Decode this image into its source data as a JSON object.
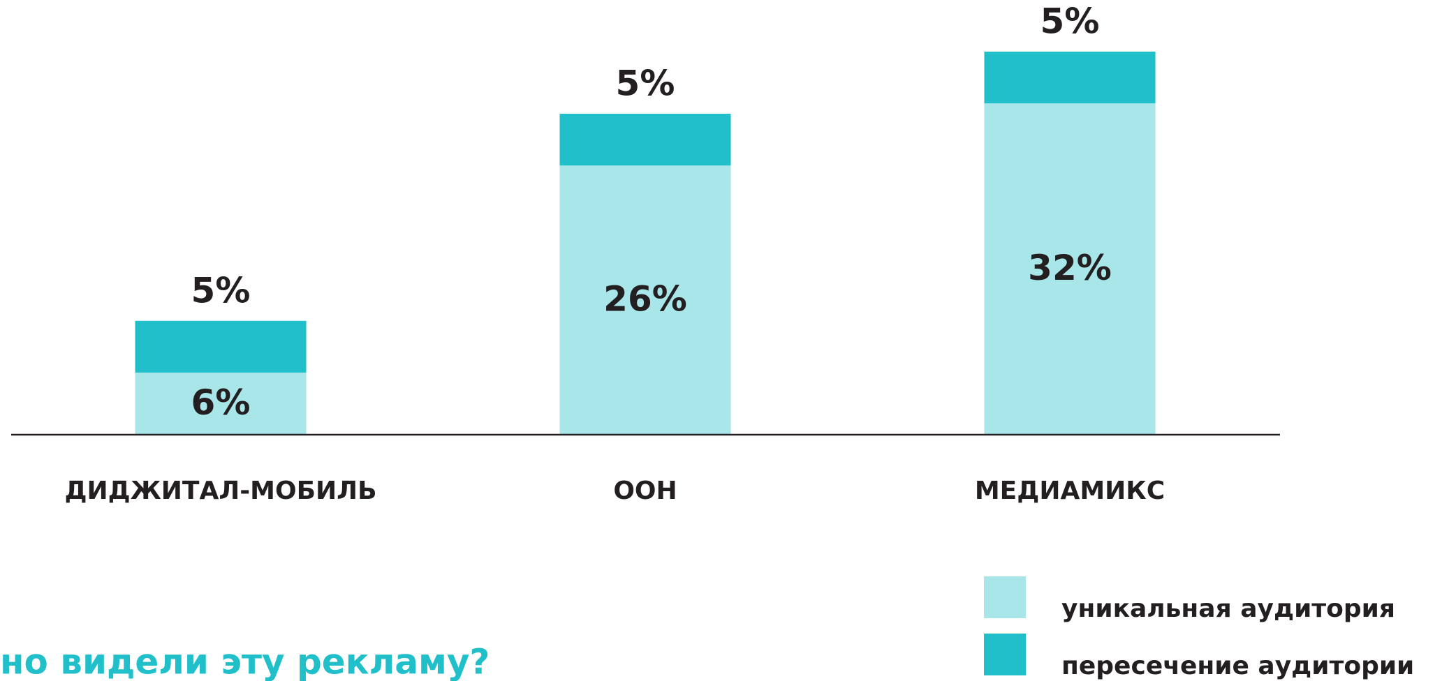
{
  "chart_data": {
    "type": "stacked_bar",
    "title": "но видели эту рекламу?",
    "categories": [
      "ДИДЖИТАЛ-МОБИЛЬ",
      "OOH",
      "МЕДИАМИКС"
    ],
    "series": [
      {
        "name": "уникальная аудитория",
        "color": "#a8e6e9",
        "values": [
          6,
          26,
          32
        ],
        "value_labels": [
          "6%",
          "26%",
          "32%"
        ]
      },
      {
        "name": "пересечение аудитории",
        "color": "#21bfc9",
        "values": [
          5,
          5,
          5
        ],
        "value_labels": [
          "5%",
          "5%",
          "5%"
        ]
      }
    ]
  }
}
